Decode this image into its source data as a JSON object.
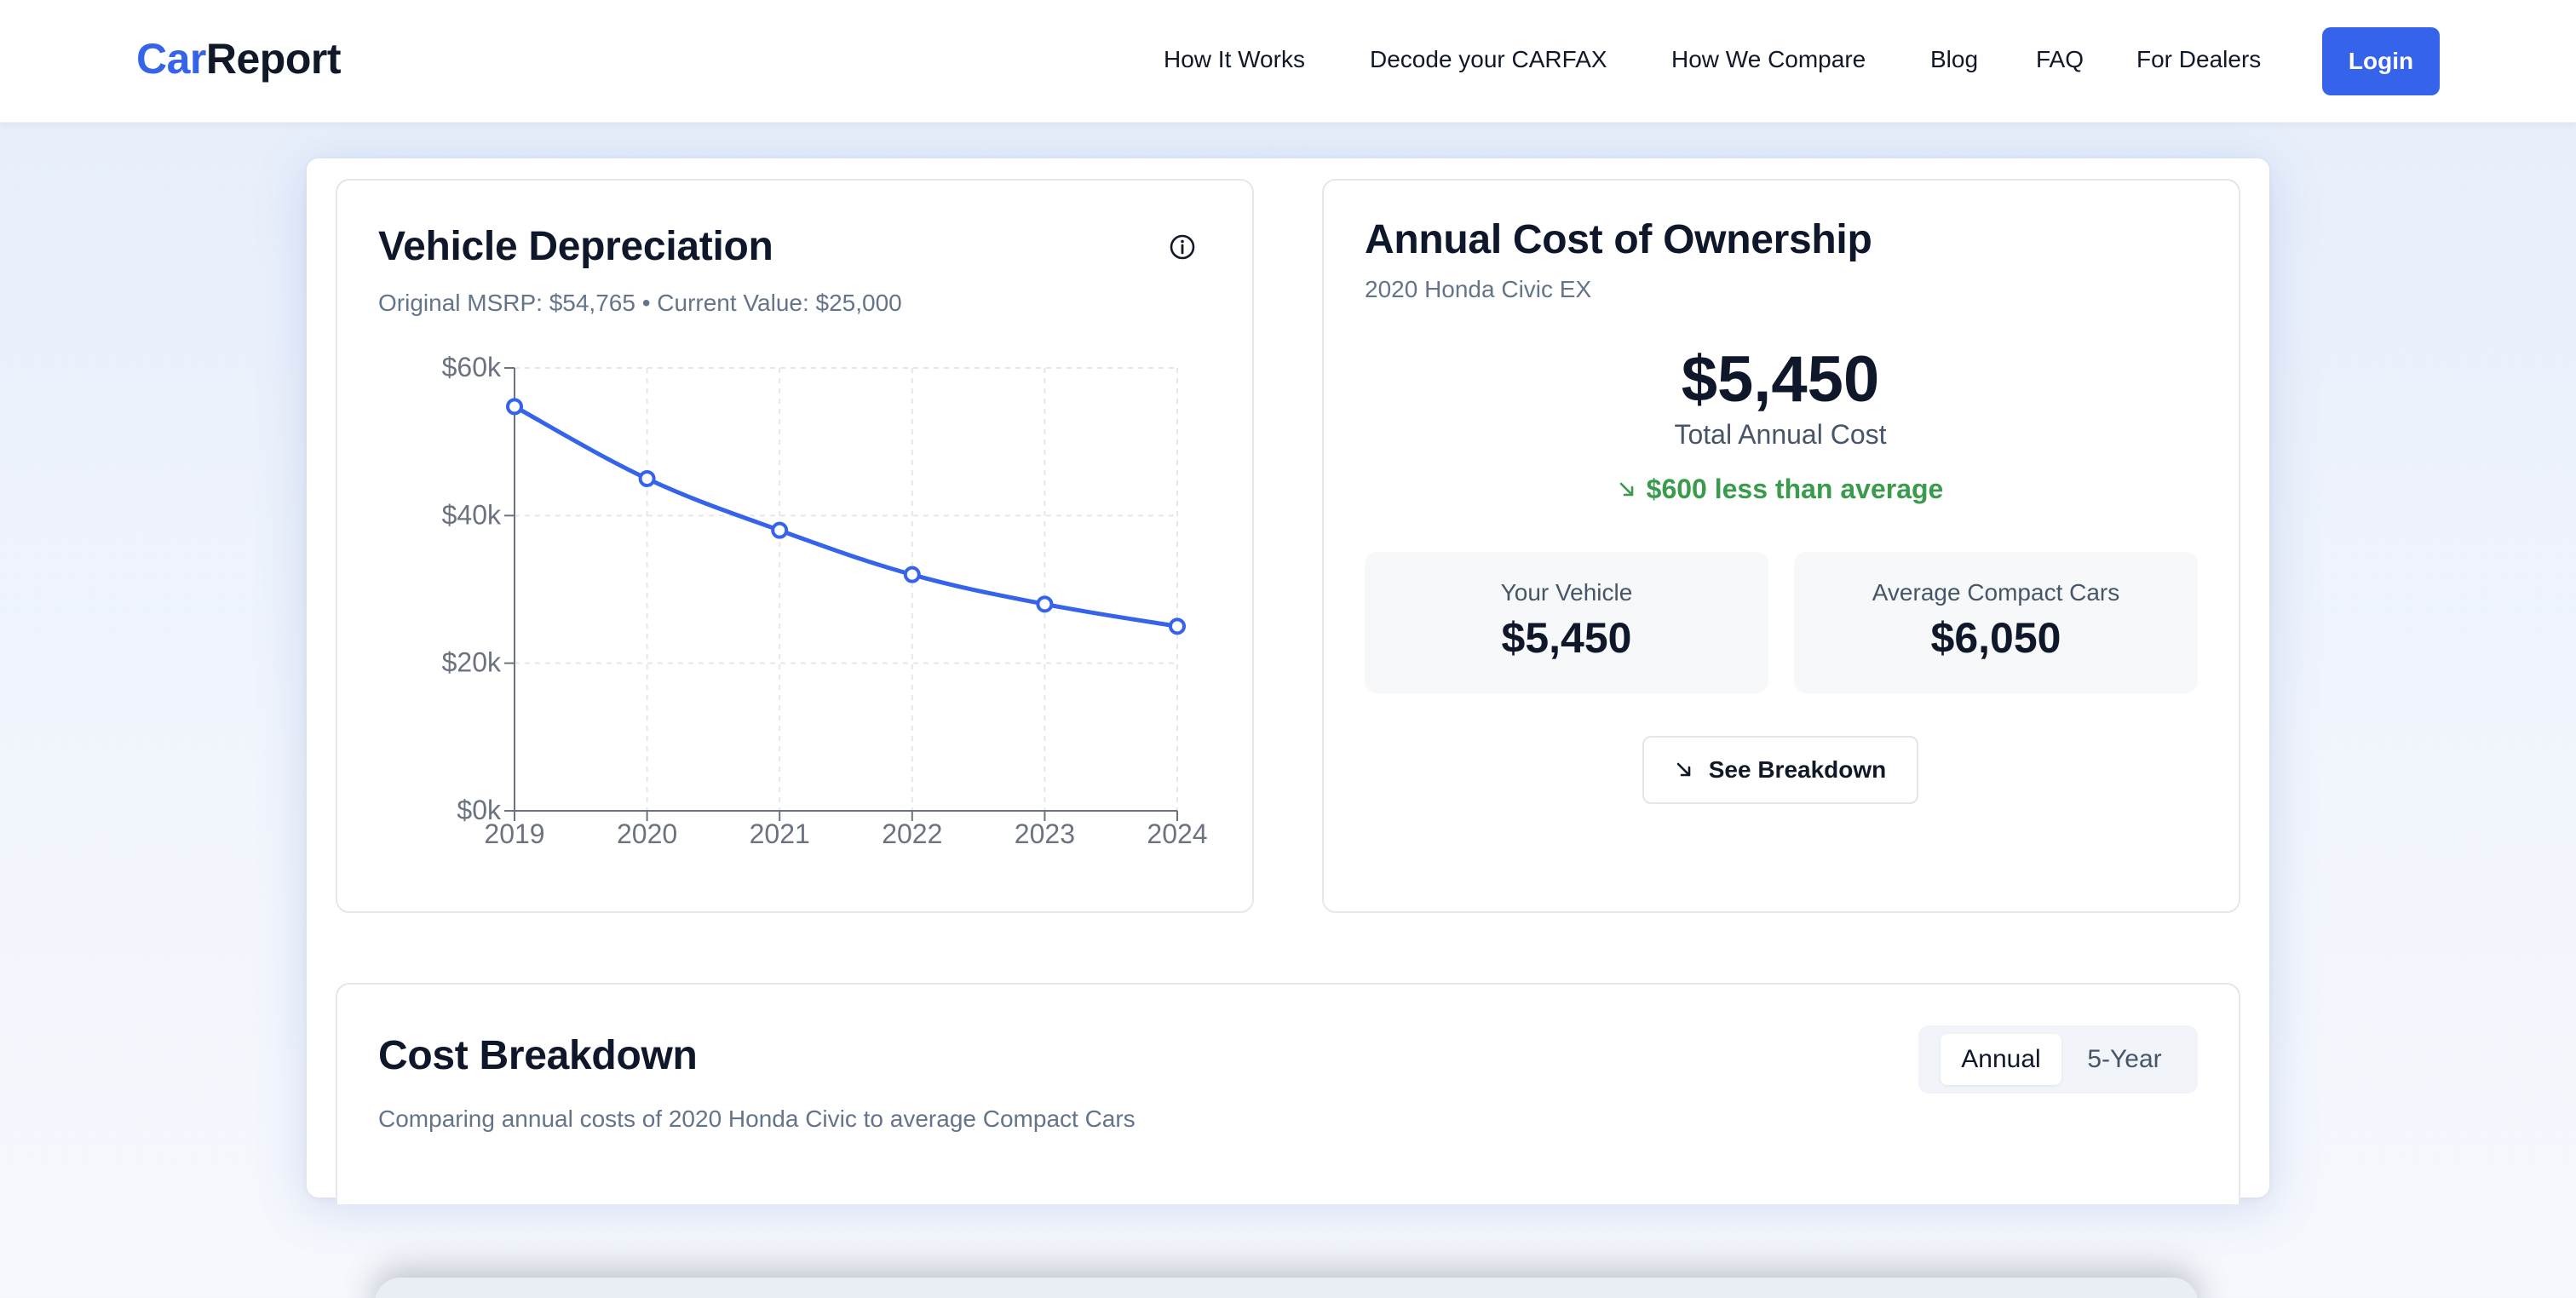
{
  "nav": {
    "logo_car": "Car",
    "logo_report": "Report",
    "links": [
      "How It Works",
      "Decode your CARFAX",
      "How We Compare",
      "Blog",
      "FAQ",
      "For Dealers"
    ],
    "login_label": "Login"
  },
  "depreciation": {
    "title": "Vehicle Depreciation",
    "subtitle": "Original MSRP: $54,765 • Current Value: $25,000",
    "info_icon": "info-circle-icon"
  },
  "chart_data": {
    "type": "line",
    "x": [
      "2019",
      "2020",
      "2021",
      "2022",
      "2023",
      "2024"
    ],
    "series": [
      {
        "values": [
          54765,
          45000,
          38000,
          32000,
          28000,
          25000
        ]
      }
    ],
    "yticks": [
      "$0k",
      "$20k",
      "$40k",
      "$60k"
    ],
    "ylim": [
      0,
      60000
    ],
    "grid": true,
    "colors": {
      "line": "#3563e9"
    }
  },
  "ownership": {
    "title": "Annual Cost of Ownership",
    "vehicle": "2020 Honda Civic EX",
    "total_cost": "$5,450",
    "total_label": "Total Annual Cost",
    "savings_text": "$600 less than average",
    "savings_icon": "arrow-down-right-icon",
    "your_vehicle_label": "Your Vehicle",
    "your_vehicle_value": "$5,450",
    "average_label": "Average Compact Cars",
    "average_value": "$6,050",
    "see_breakdown_label": "See Breakdown",
    "see_breakdown_icon": "arrow-down-right-icon"
  },
  "breakdown": {
    "title": "Cost Breakdown",
    "subtitle": "Comparing annual costs of 2020 Honda Civic to average Compact Cars",
    "toggle": {
      "annual": "Annual",
      "five_year": "5-Year",
      "selected": "Annual"
    }
  },
  "colors": {
    "accent": "#3563e9",
    "savings_green": "#3a9b4c"
  }
}
